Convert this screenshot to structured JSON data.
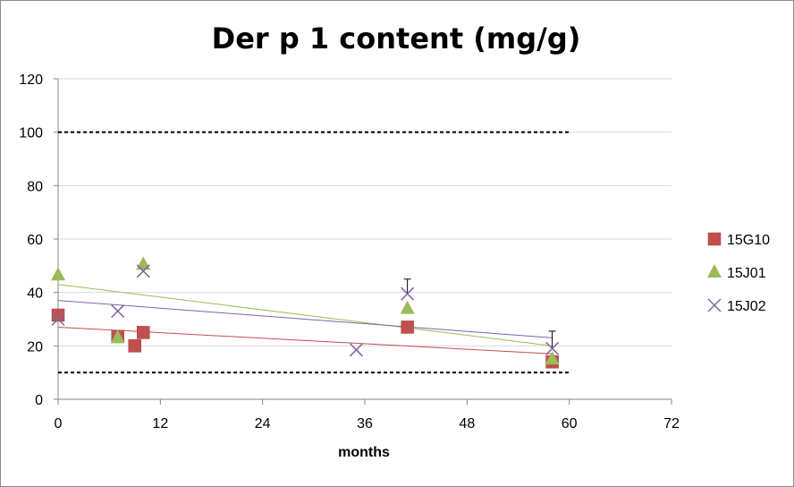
{
  "chart_data": {
    "type": "scatter",
    "title": "Der p 1 content (mg/g)",
    "xlabel": "months",
    "ylabel": "",
    "xlim": [
      0,
      72
    ],
    "ylim": [
      0,
      120
    ],
    "xticks": [
      0,
      12,
      24,
      36,
      48,
      60,
      72
    ],
    "yticks": [
      0,
      20,
      40,
      60,
      80,
      100,
      120
    ],
    "grid": "horizontal",
    "legend_position": "right",
    "reference_lines": [
      {
        "y": 100,
        "x_range": [
          0,
          60
        ],
        "style": "dashed",
        "color": "#000000"
      },
      {
        "y": 10,
        "x_range": [
          0,
          60
        ],
        "style": "dashed",
        "color": "#000000"
      }
    ],
    "series": [
      {
        "name": "15G10",
        "marker": "square",
        "color": "#c0504d",
        "points": [
          [
            0,
            31.5
          ],
          [
            7,
            23.5
          ],
          [
            9,
            20
          ],
          [
            10,
            25
          ],
          [
            41,
            27
          ],
          [
            58,
            14
          ]
        ],
        "trendline": {
          "x": [
            0,
            58
          ],
          "y": [
            27,
            17
          ]
        }
      },
      {
        "name": "15J01",
        "marker": "triangle",
        "color": "#9bbb59",
        "points": [
          [
            0,
            46.5
          ],
          [
            7,
            23
          ],
          [
            10,
            50.5
          ],
          [
            41,
            34
          ],
          [
            58,
            15
          ]
        ],
        "trendline": {
          "x": [
            0,
            58
          ],
          "y": [
            43,
            20
          ]
        }
      },
      {
        "name": "15J02",
        "marker": "x",
        "color": "#8064a2",
        "points": [
          [
            0,
            30
          ],
          [
            7,
            33
          ],
          [
            10,
            48
          ],
          [
            35,
            18.5
          ],
          [
            41,
            39.5
          ],
          [
            58,
            19
          ]
        ],
        "trendline": {
          "x": [
            0,
            58
          ],
          "y": [
            37,
            23
          ]
        }
      }
    ],
    "error_bars": [
      {
        "x": 41,
        "y": 39.5,
        "high": 45
      },
      {
        "x": 58,
        "y": 19,
        "high": 25.5
      }
    ]
  }
}
